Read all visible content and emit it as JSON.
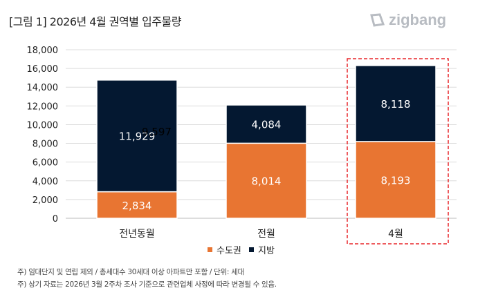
{
  "header": {
    "title": "[그림 1] 2026년 4월 권역별 입주물량",
    "logo": "zigbang"
  },
  "chart_data": {
    "type": "bar",
    "stacked": true,
    "categories": [
      "전년동월",
      "전월",
      "4월"
    ],
    "series": [
      {
        "name": "수도권",
        "values": [
          2834,
          8014,
          8193
        ],
        "color": "#e87532"
      },
      {
        "name": "지방",
        "values": [
          11929,
          4084,
          8118
        ],
        "color": "#041831"
      }
    ],
    "data_labels": [
      [
        "2,834",
        "8,014",
        "8,193"
      ],
      [
        "11,929",
        "4,084",
        "8,118"
      ]
    ],
    "stray_label": "9,597",
    "yticks": [
      "0",
      "2,000",
      "4,000",
      "6,000",
      "8,000",
      "10,000",
      "12,000",
      "14,000",
      "16,000",
      "18,000"
    ],
    "ylim": [
      0,
      18000
    ],
    "grid": true,
    "legend": "bottom",
    "highlight": {
      "category": "4월",
      "color": "#e8262a",
      "style": "dashed"
    }
  },
  "notes": [
    "주) 임대단지 및 연립 제외 / 총세대수 30세대 이상 아파트만 포함 / 단위: 세대",
    "주) 상기 자료는 2026년 3월 2주차 조사 기준으로 관련업체 사정에 따라 변경될 수 있음."
  ]
}
